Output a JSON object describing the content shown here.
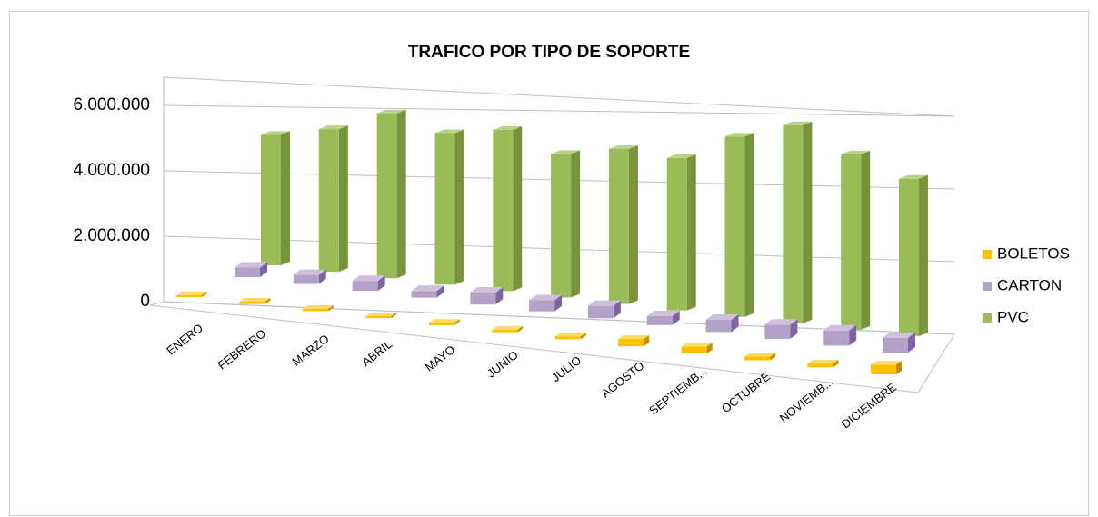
{
  "chart_data": {
    "type": "bar3d",
    "title": "TRAFICO POR TIPO DE SOPORTE",
    "categories": [
      "ENERO",
      "FEBRERO",
      "MARZO",
      "ABRIL",
      "MAYO",
      "JUNIO",
      "JULIO",
      "AGOSTO",
      "SEPTIEMB...",
      "OCTUBRE",
      "NOVIEMB...",
      "DICIEMBRE"
    ],
    "series": [
      {
        "name": "BOLETOS",
        "color": "#FFC000",
        "values": [
          60000,
          80000,
          70000,
          60000,
          70000,
          70000,
          80000,
          200000,
          180000,
          100000,
          100000,
          250000
        ]
      },
      {
        "name": "CARTON",
        "color": "#B3A2C7",
        "values": [
          300000,
          280000,
          300000,
          200000,
          350000,
          320000,
          350000,
          250000,
          330000,
          380000,
          400000,
          380000
        ]
      },
      {
        "name": "PVC",
        "color": "#9BBB59",
        "values": [
          4200000,
          4500000,
          5100000,
          4600000,
          4800000,
          4200000,
          4450000,
          4300000,
          5000000,
          5400000,
          4700000,
          4150000
        ]
      }
    ],
    "ylim": [
      0,
      6000000
    ],
    "yticks": [
      0,
      {
        "value": 2000000,
        "label": "2.000.000"
      },
      {
        "value": 4000000,
        "label": "4.000.000"
      },
      {
        "value": 6000000,
        "label": "6.000.000"
      }
    ],
    "grid": true,
    "legend": "right"
  }
}
